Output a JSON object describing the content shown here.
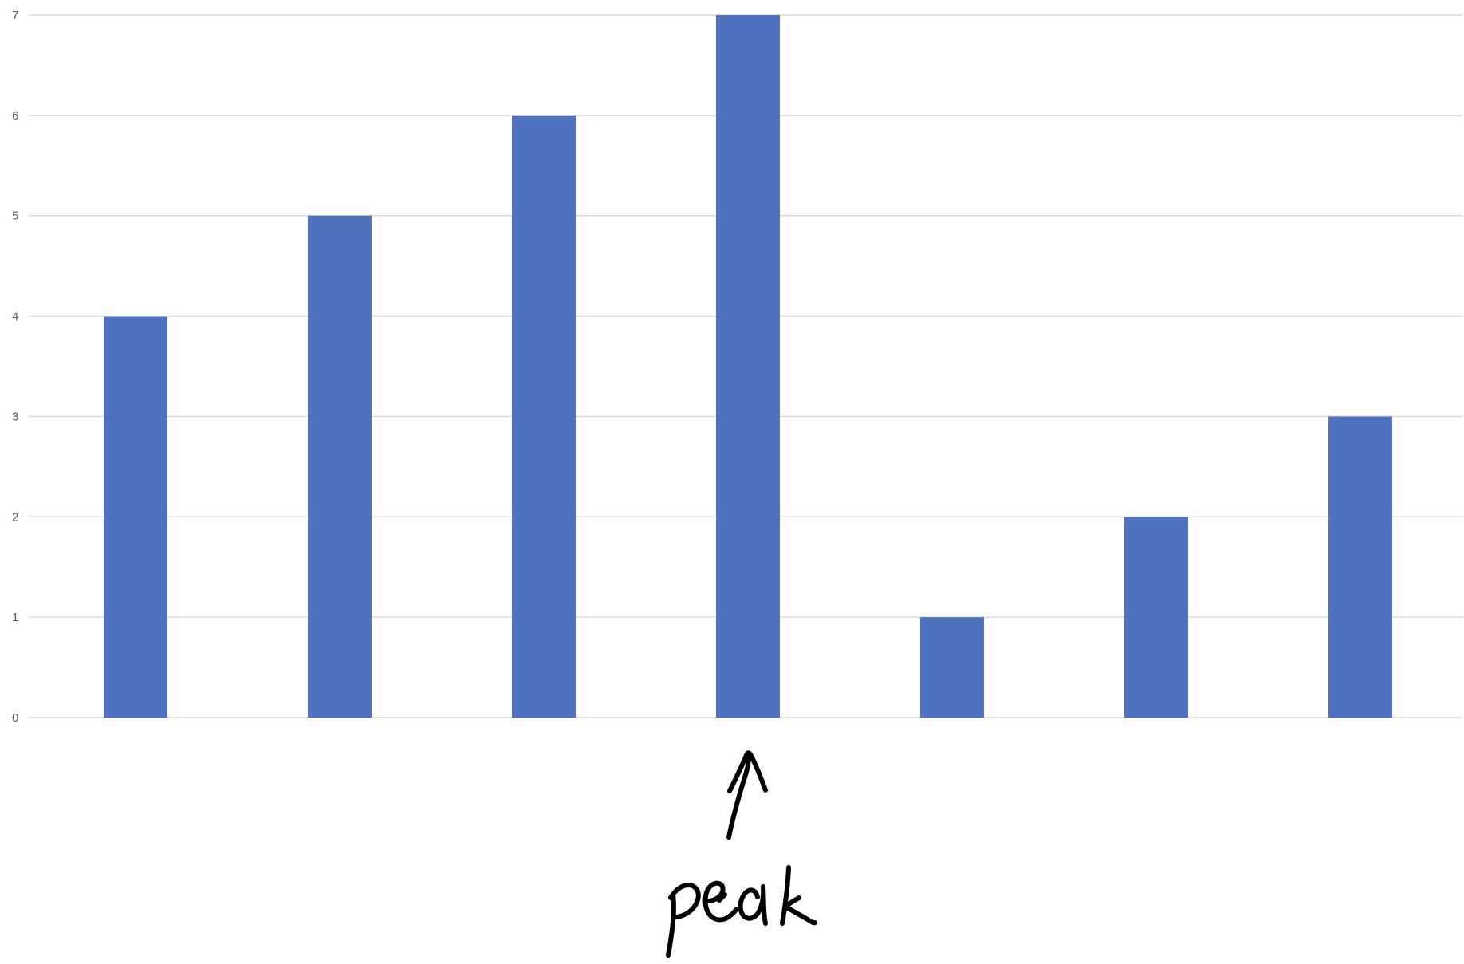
{
  "chart_data": {
    "type": "bar",
    "categories": [
      "",
      "",
      "",
      "",
      "",
      "",
      ""
    ],
    "values": [
      4,
      5,
      6,
      7,
      1,
      2,
      3
    ],
    "ylim": [
      0,
      7
    ],
    "yticks": [
      "0",
      "1",
      "2",
      "3",
      "4",
      "5",
      "6",
      "7"
    ],
    "grid": true,
    "legend": "none",
    "bar_color": "#4e72be",
    "annotation": {
      "text": "peak",
      "target_index": 3,
      "style": "handwritten arrow"
    }
  }
}
